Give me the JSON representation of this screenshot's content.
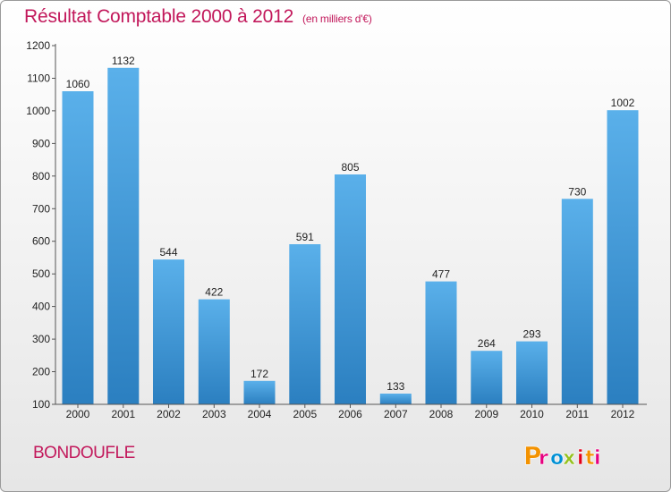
{
  "title": "Résultat Comptable 2000 à 2012",
  "subtitle": "(en milliers d'€)",
  "commune": "BONDOUFLE",
  "logo_text": "Proxiti",
  "colors": {
    "title": "#c2185b",
    "bar_top": "#5ab0ea",
    "bar_bottom": "#2b7fc0",
    "logo_letters": [
      "#f39200",
      "#e6007e",
      "#0090d4",
      "#95c11f",
      "#e2001a",
      "#f39200",
      "#e6007e"
    ]
  },
  "chart_data": {
    "type": "bar",
    "title": "Résultat Comptable 2000 à 2012",
    "subtitle": "(en milliers d'€)",
    "categories": [
      "2000",
      "2001",
      "2002",
      "2003",
      "2004",
      "2005",
      "2006",
      "2007",
      "2008",
      "2009",
      "2010",
      "2011",
      "2012"
    ],
    "values": [
      1060,
      1132,
      544,
      422,
      172,
      591,
      805,
      133,
      477,
      264,
      293,
      730,
      1002
    ],
    "data_labels": [
      "1060",
      "1132",
      "544",
      "422",
      "172",
      "591",
      "805",
      "133",
      "477",
      "264",
      "293",
      "730",
      "1002"
    ],
    "ylim": [
      100,
      1200
    ],
    "yticks": [
      100,
      200,
      300,
      400,
      500,
      600,
      700,
      800,
      900,
      1000,
      1100,
      1200
    ],
    "grid": false,
    "legend": "none"
  }
}
